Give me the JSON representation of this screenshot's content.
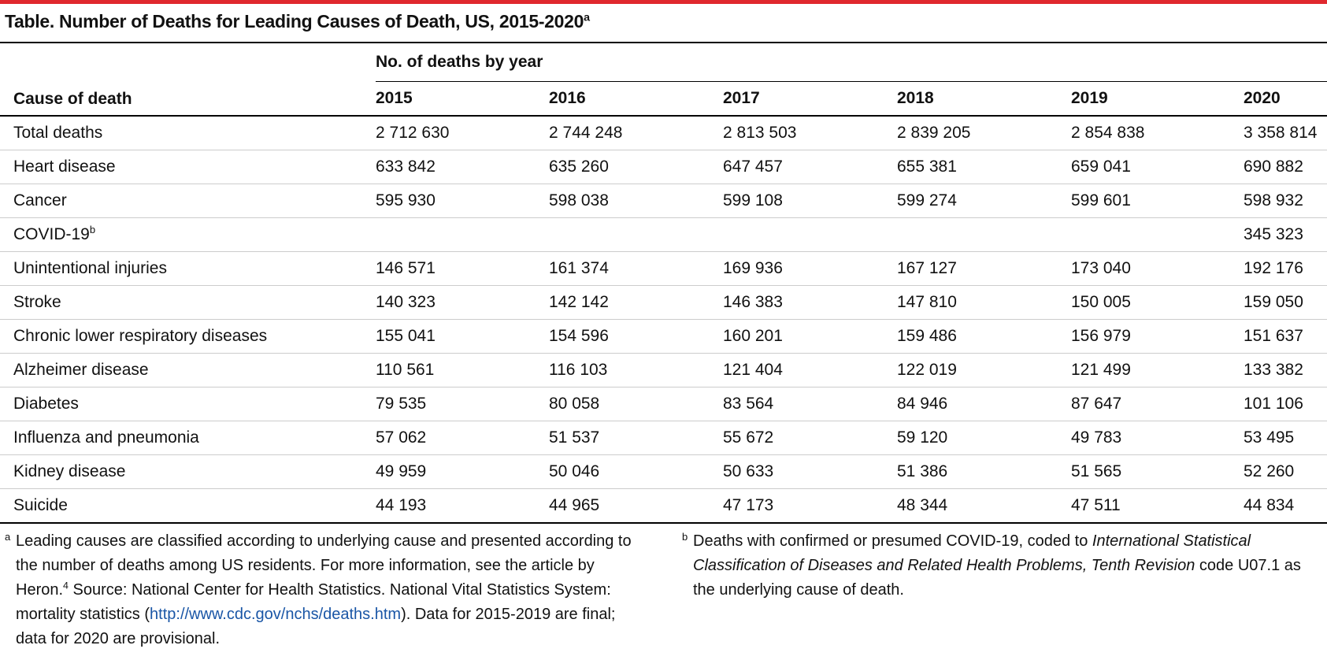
{
  "table": {
    "title": "Table. Number of Deaths for Leading Causes of Death, US, 2015-2020",
    "title_note": "a",
    "stub_header": "Cause of death",
    "column_group": "No. of deaths by year",
    "years": [
      "2015",
      "2016",
      "2017",
      "2018",
      "2019",
      "2020"
    ],
    "rows": [
      {
        "cause": "Total deaths",
        "values": [
          "2 712 630",
          "2 744 248",
          "2 813 503",
          "2 839 205",
          "2 854 838",
          "3 358 814"
        ]
      },
      {
        "cause": "Heart disease",
        "values": [
          "633 842",
          "635 260",
          "647 457",
          "655 381",
          "659 041",
          "690 882"
        ]
      },
      {
        "cause": "Cancer",
        "values": [
          "595 930",
          "598 038",
          "599 108",
          "599 274",
          "599 601",
          "598 932"
        ]
      },
      {
        "cause": "COVID-19",
        "cause_note": "b",
        "values": [
          null,
          null,
          null,
          null,
          null,
          "345 323"
        ]
      },
      {
        "cause": "Unintentional injuries",
        "values": [
          "146 571",
          "161 374",
          "169 936",
          "167 127",
          "173 040",
          "192 176"
        ]
      },
      {
        "cause": "Stroke",
        "values": [
          "140 323",
          "142 142",
          "146 383",
          "147 810",
          "150 005",
          "159 050"
        ]
      },
      {
        "cause": "Chronic lower respiratory diseases",
        "values": [
          "155 041",
          "154 596",
          "160 201",
          "159 486",
          "156 979",
          "151 637"
        ]
      },
      {
        "cause": "Alzheimer disease",
        "values": [
          "110 561",
          "116 103",
          "121 404",
          "122 019",
          "121 499",
          "133 382"
        ]
      },
      {
        "cause": "Diabetes",
        "values": [
          "79 535",
          "80 058",
          "83 564",
          "84 946",
          "87 647",
          "101 106"
        ]
      },
      {
        "cause": "Influenza and pneumonia",
        "values": [
          "57 062",
          "51 537",
          "55 672",
          "59 120",
          "49 783",
          "53 495"
        ]
      },
      {
        "cause": "Kidney disease",
        "values": [
          "49 959",
          "50 046",
          "50 633",
          "51 386",
          "51 565",
          "52 260"
        ]
      },
      {
        "cause": "Suicide",
        "values": [
          "44 193",
          "44 965",
          "47 173",
          "48 344",
          "47 511",
          "44 834"
        ]
      }
    ]
  },
  "footnotes": [
    {
      "mark": "a",
      "parts": [
        {
          "text": "Leading causes are classified according to underlying cause and presented according to the number of deaths among US residents. For more information, see the article by Heron."
        },
        {
          "text": "4",
          "style": "sup"
        },
        {
          "text": " Source: National Center for Health Statistics. National Vital Statistics System: mortality statistics ("
        },
        {
          "text": "http://www.cdc.gov/nchs/deaths.htm",
          "style": "link"
        },
        {
          "text": "). Data for 2015-2019 are final; data for 2020 are provisional."
        }
      ]
    },
    {
      "mark": "b",
      "parts": [
        {
          "text": "Deaths with confirmed or presumed COVID-19, coded to "
        },
        {
          "text": "International Statistical Classification of Diseases and Related Health Problems, Tenth Revision",
          "style": "italic"
        },
        {
          "text": " code U07.1 as the underlying cause of death."
        }
      ]
    }
  ]
}
